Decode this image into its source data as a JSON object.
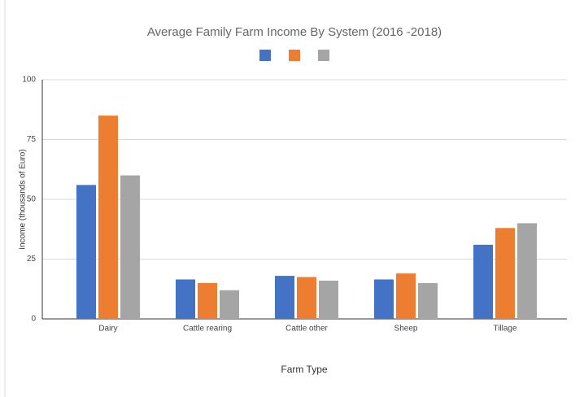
{
  "chart_data": {
    "type": "bar",
    "title": "Average Family Farm Income By System (2016 -2018)",
    "x_label": "Farm Type",
    "y_label": "Income (thousands of Euro)",
    "categories": [
      "Dairy",
      "Cattle rearing",
      "Cattle other",
      "Sheep",
      "Tillage"
    ],
    "series": [
      {
        "color": "#4472c4",
        "values": [
          56,
          16.5,
          18,
          16.5,
          31
        ]
      },
      {
        "color": "#ed7d31",
        "values": [
          85,
          15,
          17.5,
          19,
          38
        ]
      },
      {
        "color": "#a5a5a5",
        "values": [
          60,
          12,
          16,
          15,
          40
        ]
      }
    ],
    "ylim": [
      0,
      100
    ],
    "yticks": [
      0,
      25,
      50,
      75,
      100
    ],
    "grid": true,
    "legend": "top"
  }
}
